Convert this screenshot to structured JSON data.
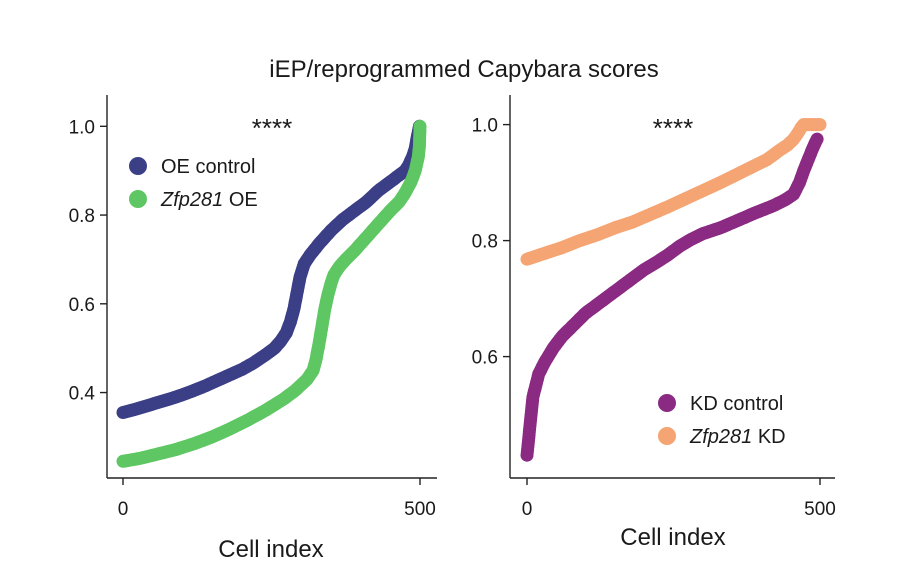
{
  "chart_data": {
    "title": "iEP/reprogrammed Capybara scores",
    "panels": [
      {
        "type": "scatter",
        "xlabel": "Cell index",
        "ylabel": "",
        "xlim": [
          0,
          500
        ],
        "ylim": [
          0.23,
          1.03
        ],
        "xticks": [
          "0",
          "500"
        ],
        "yticks": [
          "0.4",
          "0.6",
          "0.8",
          "1.0"
        ],
        "significance": "****",
        "legend_position": "top-left",
        "series": [
          {
            "name": "OE control",
            "name_italic": "",
            "name_rest": "OE control",
            "color": "#3b3f86",
            "points": [
              [
                0,
                0.355
              ],
              [
                20,
                0.362
              ],
              [
                40,
                0.37
              ],
              [
                60,
                0.378
              ],
              [
                80,
                0.386
              ],
              [
                100,
                0.395
              ],
              [
                120,
                0.405
              ],
              [
                140,
                0.416
              ],
              [
                160,
                0.428
              ],
              [
                180,
                0.44
              ],
              [
                200,
                0.452
              ],
              [
                220,
                0.467
              ],
              [
                240,
                0.485
              ],
              [
                255,
                0.5
              ],
              [
                265,
                0.515
              ],
              [
                275,
                0.535
              ],
              [
                282,
                0.56
              ],
              [
                288,
                0.59
              ],
              [
                293,
                0.625
              ],
              [
                298,
                0.66
              ],
              [
                305,
                0.69
              ],
              [
                315,
                0.71
              ],
              [
                330,
                0.735
              ],
              [
                350,
                0.765
              ],
              [
                370,
                0.79
              ],
              [
                390,
                0.81
              ],
              [
                410,
                0.83
              ],
              [
                430,
                0.855
              ],
              [
                450,
                0.875
              ],
              [
                465,
                0.89
              ],
              [
                475,
                0.9
              ],
              [
                480,
                0.91
              ],
              [
                487,
                0.93
              ],
              [
                492,
                0.95
              ],
              [
                496,
                0.98
              ],
              [
                499,
                1.0
              ]
            ]
          },
          {
            "name": "Zfp281 OE",
            "name_italic": "Zfp281",
            "name_rest": " OE",
            "color": "#5ec763",
            "points": [
              [
                0,
                0.245
              ],
              [
                30,
                0.252
              ],
              [
                60,
                0.262
              ],
              [
                90,
                0.272
              ],
              [
                120,
                0.285
              ],
              [
                150,
                0.3
              ],
              [
                180,
                0.318
              ],
              [
                210,
                0.338
              ],
              [
                240,
                0.36
              ],
              [
                270,
                0.385
              ],
              [
                290,
                0.405
              ],
              [
                310,
                0.43
              ],
              [
                320,
                0.45
              ],
              [
                325,
                0.475
              ],
              [
                330,
                0.51
              ],
              [
                335,
                0.55
              ],
              [
                340,
                0.59
              ],
              [
                345,
                0.62
              ],
              [
                350,
                0.645
              ],
              [
                355,
                0.665
              ],
              [
                365,
                0.685
              ],
              [
                375,
                0.7
              ],
              [
                390,
                0.72
              ],
              [
                410,
                0.75
              ],
              [
                430,
                0.78
              ],
              [
                450,
                0.81
              ],
              [
                465,
                0.83
              ],
              [
                475,
                0.85
              ],
              [
                485,
                0.875
              ],
              [
                492,
                0.9
              ],
              [
                497,
                0.93
              ],
              [
                499,
                0.955
              ],
              [
                500,
                1.0
              ]
            ]
          }
        ]
      },
      {
        "type": "scatter",
        "xlabel": "Cell index",
        "ylabel": "",
        "xlim": [
          0,
          500
        ],
        "ylim": [
          0.42,
          1.02
        ],
        "xticks": [
          "0",
          "500"
        ],
        "yticks": [
          "0.6",
          "0.8",
          "1.0"
        ],
        "significance": "****",
        "legend_position": "bottom-right",
        "series": [
          {
            "name": "KD control",
            "name_italic": "",
            "name_rest": "KD control",
            "color": "#8a2a82",
            "points": [
              [
                0,
                0.43
              ],
              [
                2,
                0.45
              ],
              [
                4,
                0.47
              ],
              [
                6,
                0.49
              ],
              [
                8,
                0.51
              ],
              [
                10,
                0.53
              ],
              [
                15,
                0.55
              ],
              [
                20,
                0.57
              ],
              [
                30,
                0.59
              ],
              [
                45,
                0.615
              ],
              [
                60,
                0.635
              ],
              [
                80,
                0.655
              ],
              [
                100,
                0.675
              ],
              [
                120,
                0.69
              ],
              [
                140,
                0.705
              ],
              [
                160,
                0.72
              ],
              [
                180,
                0.735
              ],
              [
                200,
                0.75
              ],
              [
                220,
                0.762
              ],
              [
                240,
                0.775
              ],
              [
                260,
                0.79
              ],
              [
                280,
                0.802
              ],
              [
                300,
                0.812
              ],
              [
                330,
                0.822
              ],
              [
                360,
                0.835
              ],
              [
                390,
                0.848
              ],
              [
                420,
                0.86
              ],
              [
                440,
                0.87
              ],
              [
                455,
                0.88
              ],
              [
                465,
                0.9
              ],
              [
                472,
                0.92
              ],
              [
                480,
                0.94
              ],
              [
                488,
                0.96
              ],
              [
                495,
                0.975
              ]
            ]
          },
          {
            "name": "Zfp281 KD",
            "name_italic": "Zfp281",
            "name_rest": " KD",
            "color": "#f5a473",
            "points": [
              [
                0,
                0.768
              ],
              [
                30,
                0.778
              ],
              [
                60,
                0.788
              ],
              [
                90,
                0.8
              ],
              [
                120,
                0.81
              ],
              [
                150,
                0.822
              ],
              [
                180,
                0.832
              ],
              [
                210,
                0.845
              ],
              [
                240,
                0.858
              ],
              [
                270,
                0.872
              ],
              [
                300,
                0.886
              ],
              [
                330,
                0.9
              ],
              [
                360,
                0.915
              ],
              [
                390,
                0.93
              ],
              [
                410,
                0.94
              ],
              [
                430,
                0.955
              ],
              [
                445,
                0.965
              ],
              [
                455,
                0.975
              ],
              [
                462,
                0.985
              ],
              [
                468,
                0.995
              ],
              [
                472,
                1.0
              ],
              [
                480,
                1.0
              ],
              [
                490,
                1.0
              ],
              [
                500,
                1.0
              ]
            ]
          }
        ]
      }
    ]
  }
}
